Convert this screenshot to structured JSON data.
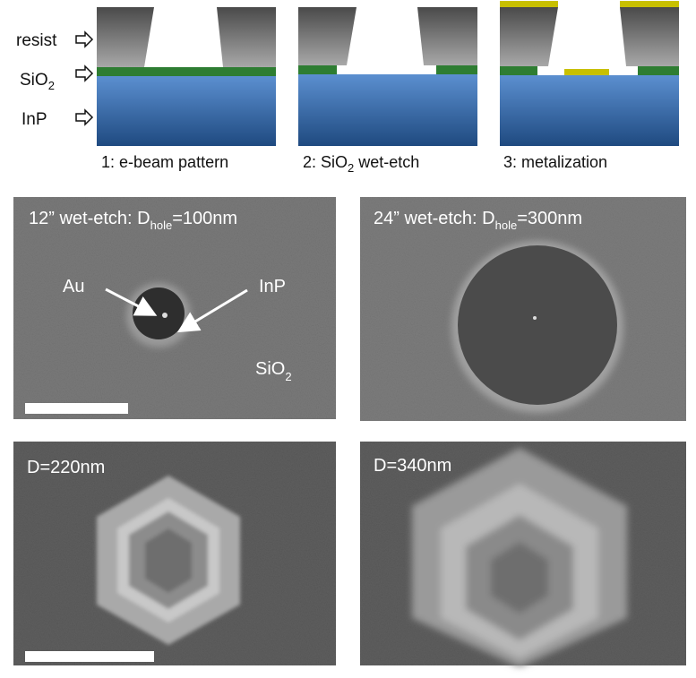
{
  "schematic": {
    "layer_labels": {
      "resist": "resist",
      "sio2": [
        {
          "text": "SiO"
        },
        {
          "text": "2",
          "sub": true
        }
      ],
      "inp": "InP"
    },
    "steps": [
      [
        {
          "text": "1: e-beam pattern"
        }
      ],
      [
        {
          "text": "2: SiO"
        },
        {
          "text": "2",
          "sub": true
        },
        {
          "text": " wet-etch"
        }
      ],
      [
        {
          "text": "3: metalization"
        }
      ]
    ]
  },
  "sem_panels": [
    {
      "caption": [
        {
          "text": "12” wet-etch: D"
        },
        {
          "text": "hole",
          "sub": true
        },
        {
          "text": "=100nm"
        }
      ],
      "annotations": {
        "au": "Au",
        "inp": "InP",
        "sio2": [
          {
            "text": "SiO"
          },
          {
            "text": "2",
            "sub": true
          }
        ]
      }
    },
    {
      "caption": [
        {
          "text": "24” wet-etch: D"
        },
        {
          "text": "hole",
          "sub": true
        },
        {
          "text": "=300nm"
        }
      ]
    },
    {
      "caption": [
        {
          "text": "D=220nm"
        }
      ]
    },
    {
      "caption": [
        {
          "text": "D=340nm"
        }
      ]
    }
  ]
}
